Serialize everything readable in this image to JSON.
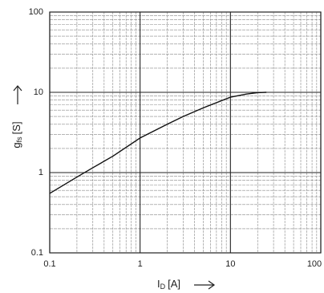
{
  "chart_data": {
    "type": "line",
    "x_label": {
      "symbol": "I",
      "subscript": "D",
      "unit": "[A]"
    },
    "y_label": {
      "symbol": "g",
      "subscript": "fs",
      "unit": "[S]"
    },
    "x": [
      0.1,
      0.2,
      0.3,
      0.5,
      1,
      2,
      3,
      5,
      10,
      15,
      20,
      25
    ],
    "values": [
      0.55,
      0.88,
      1.15,
      1.6,
      2.7,
      4.0,
      5.0,
      6.4,
      8.7,
      9.5,
      9.9,
      10
    ],
    "color": "#111111",
    "xscale": "log",
    "yscale": "log",
    "xlim": [
      0.1,
      100
    ],
    "ylim": [
      0.1,
      100
    ],
    "xticks": [
      0.1,
      1,
      10,
      100
    ],
    "yticks": [
      0.1,
      1,
      10,
      100
    ],
    "grid": true
  }
}
